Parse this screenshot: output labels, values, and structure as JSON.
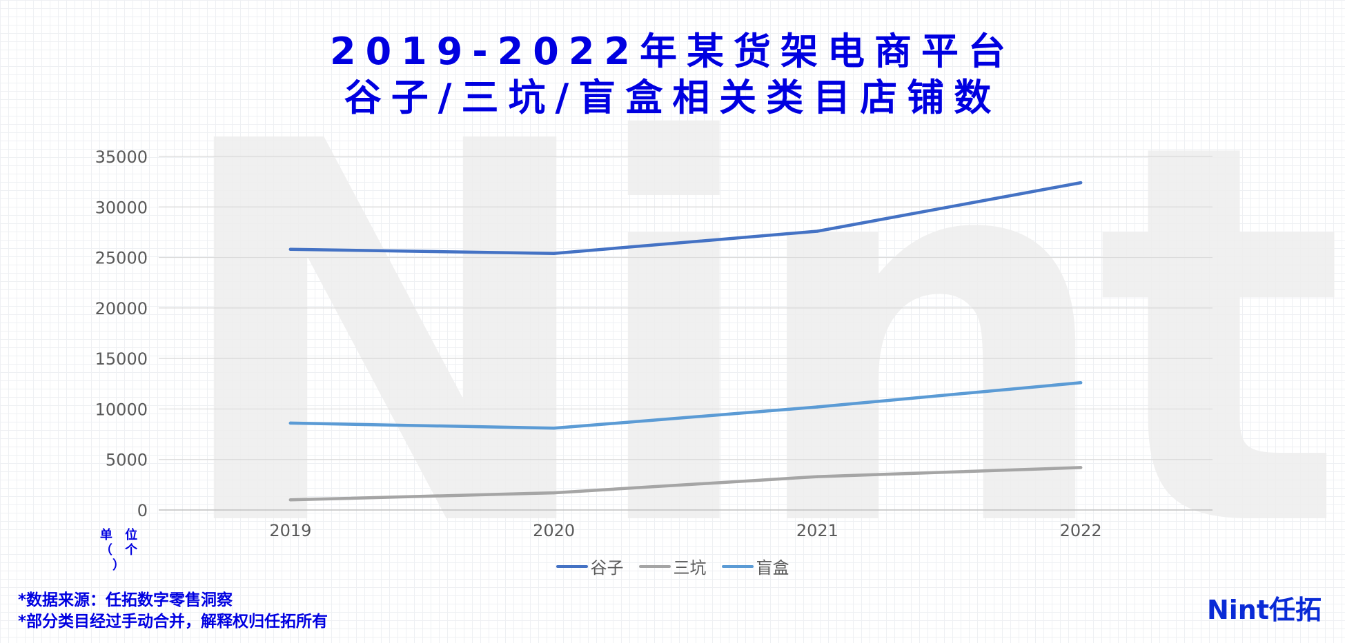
{
  "title": {
    "line1": "2019-2022年某货架电商平台",
    "line2": "谷子/三坑/盲盒相关类目店铺数"
  },
  "watermark_text": "Nint",
  "unit_label": {
    "line1": "单 位",
    "line2": "（ 个 ）"
  },
  "footnotes": {
    "source": "*数据来源：任拓数字零售洞察",
    "note": "*部分类目经过手动合并，解释权归任拓所有"
  },
  "logo_text": "Nint任拓",
  "colors": {
    "title": "#0000e0",
    "axis_text": "#595959",
    "gridline": "#d9d9d9"
  },
  "chart_data": {
    "type": "line",
    "title": "2019-2022年某货架电商平台谷子/三坑/盲盒相关类目店铺数",
    "xlabel": "",
    "ylabel": "",
    "categories": [
      "2019",
      "2020",
      "2021",
      "2022"
    ],
    "ylim": [
      0,
      35000
    ],
    "yticks": [
      0,
      5000,
      10000,
      15000,
      20000,
      25000,
      30000,
      35000
    ],
    "grid": true,
    "legend_position": "bottom",
    "series": [
      {
        "name": "谷子",
        "color": "#4472c4",
        "values": [
          25800,
          25400,
          27600,
          32400
        ]
      },
      {
        "name": "三坑",
        "color": "#a5a5a5",
        "values": [
          1000,
          1700,
          3300,
          4200
        ]
      },
      {
        "name": "盲盒",
        "color": "#5b9bd5",
        "values": [
          8600,
          8100,
          10200,
          12600
        ]
      }
    ]
  }
}
